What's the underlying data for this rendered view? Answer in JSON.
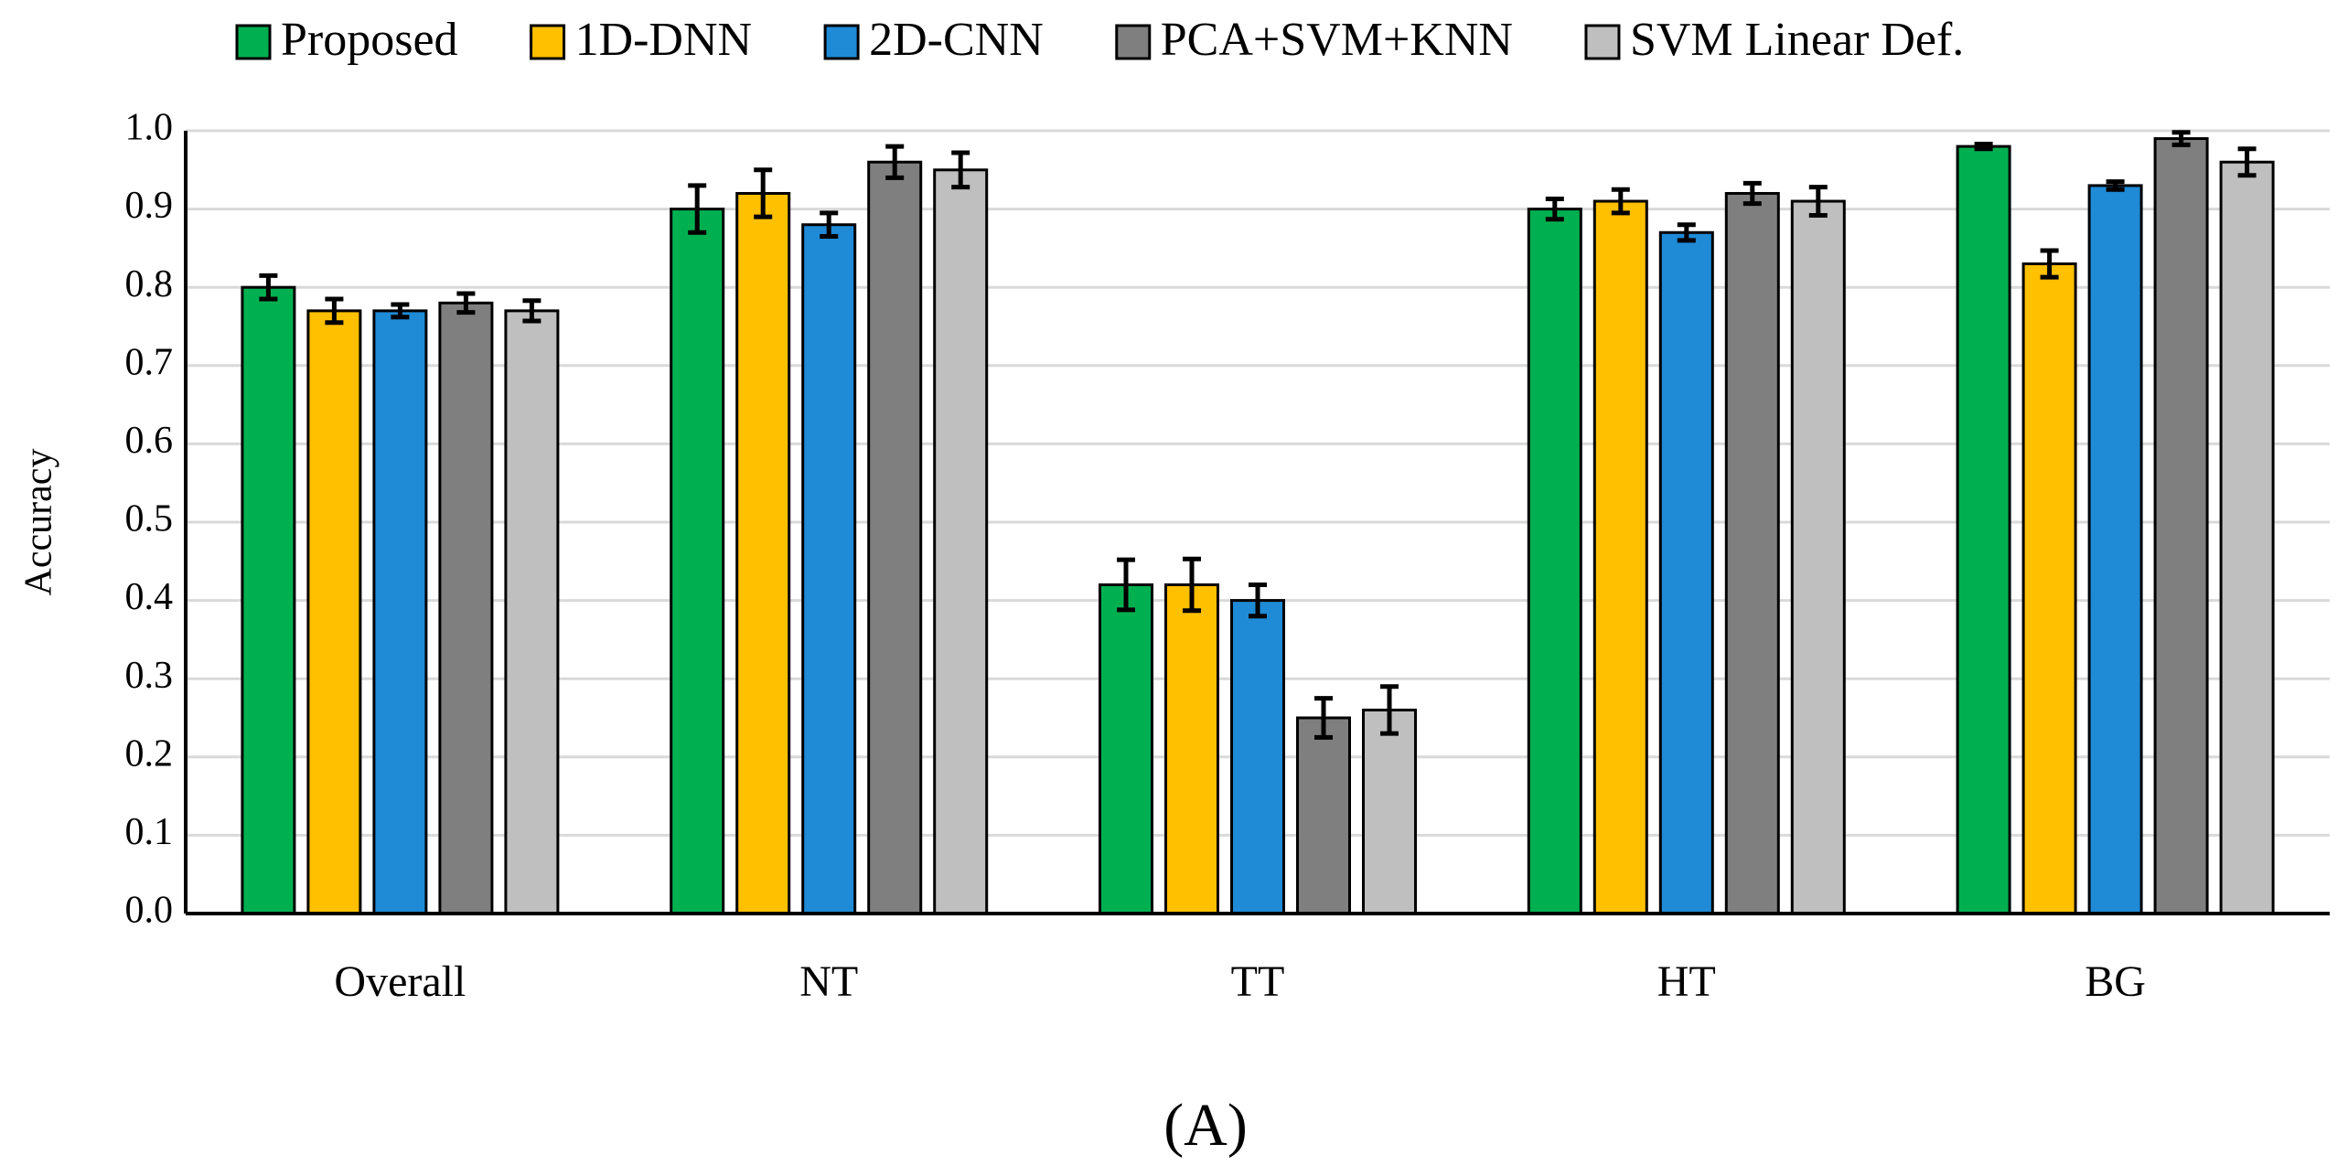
{
  "chart_data": {
    "type": "bar",
    "ylabel": "Accuracy",
    "caption": "(A)",
    "categories": [
      "Overall",
      "NT",
      "TT",
      "HT",
      "BG"
    ],
    "series": [
      {
        "name": "Proposed",
        "color": "#00b050",
        "values": [
          0.8,
          0.9,
          0.42,
          0.9,
          0.98
        ],
        "errors": [
          0.015,
          0.03,
          0.032,
          0.013,
          0.003
        ]
      },
      {
        "name": "1D-DNN",
        "color": "#ffc000",
        "values": [
          0.77,
          0.92,
          0.42,
          0.91,
          0.83
        ],
        "errors": [
          0.015,
          0.03,
          0.033,
          0.015,
          0.017
        ]
      },
      {
        "name": "2D-CNN",
        "color": "#1f8ad6",
        "values": [
          0.77,
          0.88,
          0.4,
          0.87,
          0.93
        ],
        "errors": [
          0.008,
          0.015,
          0.02,
          0.01,
          0.005
        ]
      },
      {
        "name": "PCA+SVM+KNN",
        "color": "#7f7f7f",
        "values": [
          0.78,
          0.96,
          0.25,
          0.92,
          0.99
        ],
        "errors": [
          0.012,
          0.02,
          0.025,
          0.013,
          0.008
        ]
      },
      {
        "name": "SVM Linear Def.",
        "color": "#bfbfbf",
        "values": [
          0.77,
          0.95,
          0.26,
          0.91,
          0.96
        ],
        "errors": [
          0.013,
          0.022,
          0.03,
          0.018,
          0.017
        ]
      }
    ],
    "ylim": [
      0,
      1
    ],
    "yticks": [
      {
        "value": 0,
        "label": "0.0"
      },
      0.1,
      0.2,
      0.3,
      0.4,
      0.5,
      0.6,
      0.7,
      0.8,
      0.9,
      {
        "value": 1,
        "label": "1.0"
      }
    ],
    "grid": true,
    "legend": "top"
  }
}
